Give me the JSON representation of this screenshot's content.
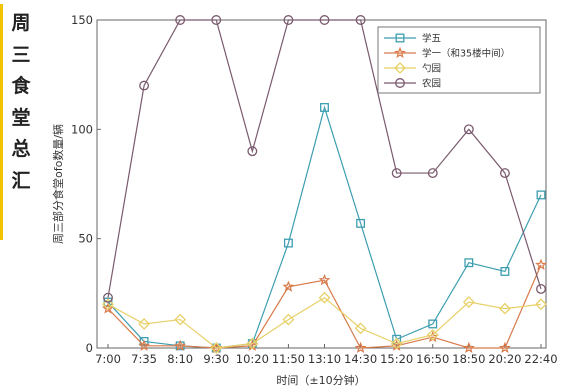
{
  "side_title": [
    "周",
    "三",
    "食",
    "堂",
    "总",
    "汇"
  ],
  "chart_data": {
    "type": "line",
    "title": "",
    "xlabel": "时间（±10分钟）",
    "ylabel": "周三部分食堂ofo数量/辆",
    "categories": [
      "7:00",
      "7:35",
      "8:10",
      "9:30",
      "10:20",
      "11:50",
      "13:10",
      "14:30",
      "15:20",
      "16:50",
      "18:50",
      "20:20",
      "22:40"
    ],
    "yticks": [
      0,
      50,
      100,
      150
    ],
    "ylim": [
      0,
      150
    ],
    "grid": false,
    "legend_position": "top-right",
    "series": [
      {
        "name": "学五",
        "color": "#3d9eb0",
        "marker": "square",
        "values": [
          21,
          3,
          1,
          0,
          2,
          48,
          110,
          57,
          4,
          11,
          39,
          35,
          70
        ]
      },
      {
        "name": "学一（和35楼中间）",
        "color": "#d87a4a",
        "marker": "star",
        "values": [
          18,
          1,
          1,
          0,
          1,
          28,
          31,
          0,
          1,
          5,
          0,
          0,
          38
        ]
      },
      {
        "name": "勺园",
        "color": "#e8d068",
        "marker": "diamond",
        "values": [
          20,
          11,
          13,
          0,
          2,
          13,
          23,
          9,
          2,
          6,
          21,
          18,
          20
        ]
      },
      {
        "name": "农园",
        "color": "#7a5a6e",
        "marker": "circle",
        "values": [
          23,
          120,
          150,
          150,
          90,
          150,
          150,
          150,
          80,
          80,
          100,
          80,
          27
        ]
      }
    ]
  }
}
